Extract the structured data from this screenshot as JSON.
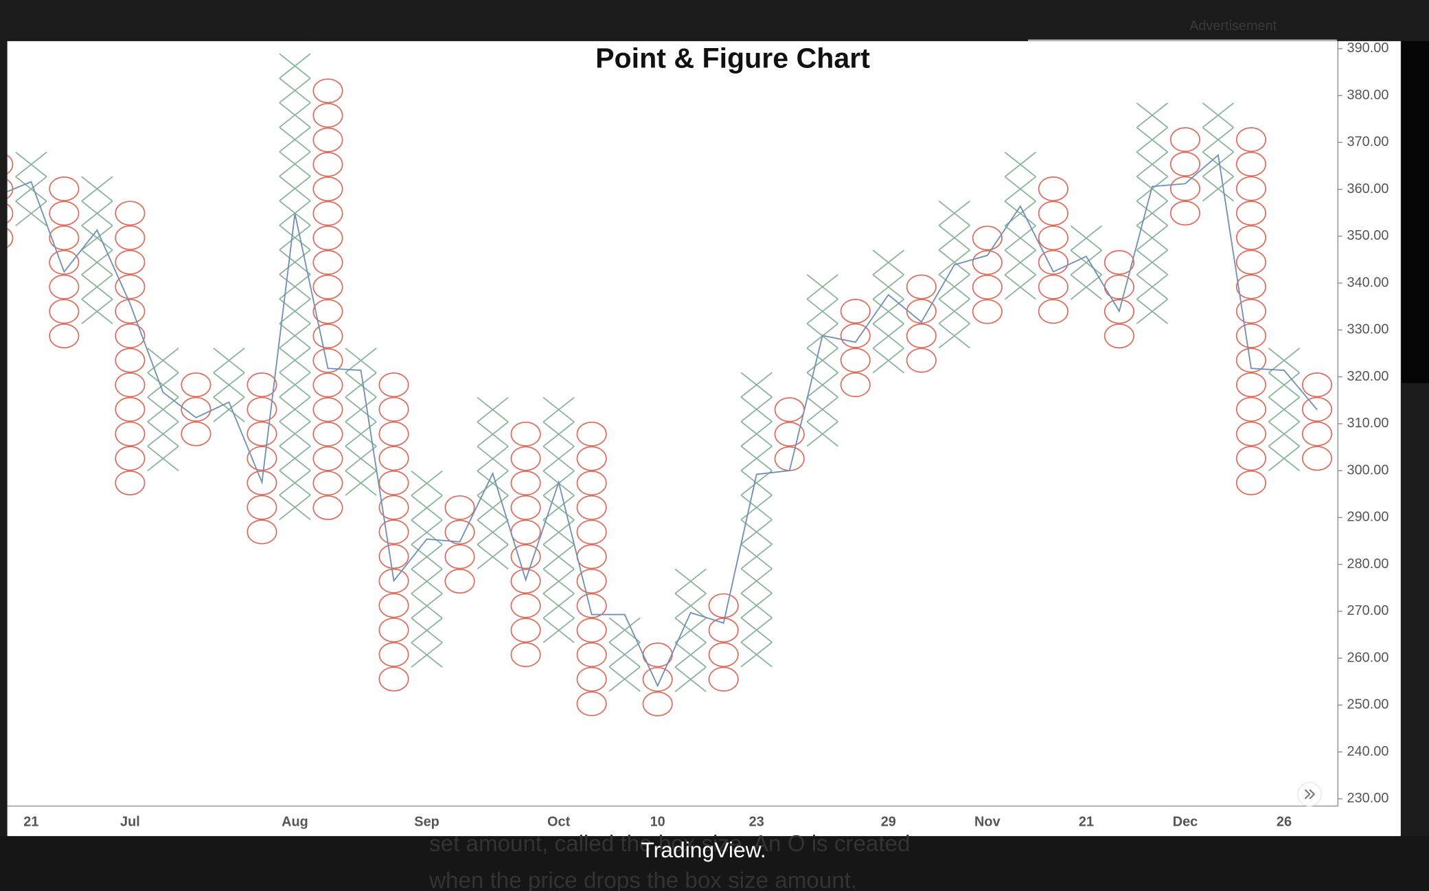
{
  "page": {
    "advertisement": "Advertisement",
    "watermark": "TradingView.",
    "background_text": [
      "set amount, called the box size. An O is created",
      "when the price drops the box size amount."
    ]
  },
  "chart_data": {
    "type": "point_and_figure",
    "title": "Point & Figure Chart",
    "categories": [
      null,
      "21",
      null,
      null,
      "Jul",
      null,
      null,
      null,
      null,
      "Aug",
      null,
      null,
      null,
      "Sep",
      null,
      null,
      null,
      "Oct",
      null,
      null,
      "10",
      null,
      null,
      "23",
      null,
      null,
      null,
      "29",
      null,
      null,
      "Nov",
      null,
      null,
      "21",
      null,
      null,
      "Dec",
      null,
      null,
      "26",
      null
    ],
    "box_size": 5.23,
    "x_color": "#86b295",
    "o_color": "#e06a5a",
    "columns": [
      {
        "type": "O",
        "high": 365.3,
        "low": 349.6
      },
      {
        "type": "X",
        "high": 365.3,
        "low": 354.9
      },
      {
        "type": "O",
        "high": 360.1,
        "low": 328.7
      },
      {
        "type": "X",
        "high": 360.1,
        "low": 334.0
      },
      {
        "type": "O",
        "high": 354.9,
        "low": 297.3
      },
      {
        "type": "X",
        "high": 323.5,
        "low": 302.6
      },
      {
        "type": "O",
        "high": 318.3,
        "low": 307.8
      },
      {
        "type": "X",
        "high": 323.5,
        "low": 313.0
      },
      {
        "type": "O",
        "high": 318.3,
        "low": 286.9
      },
      {
        "type": "X",
        "high": 386.3,
        "low": 292.1
      },
      {
        "type": "O",
        "high": 381.0,
        "low": 292.1
      },
      {
        "type": "X",
        "high": 323.5,
        "low": 297.3
      },
      {
        "type": "O",
        "high": 318.3,
        "low": 255.5
      },
      {
        "type": "X",
        "high": 297.3,
        "low": 260.7
      },
      {
        "type": "O",
        "high": 292.1,
        "low": 276.4
      },
      {
        "type": "X",
        "high": 313.0,
        "low": 281.7
      },
      {
        "type": "O",
        "high": 307.8,
        "low": 260.7
      },
      {
        "type": "X",
        "high": 313.0,
        "low": 266.0
      },
      {
        "type": "O",
        "high": 307.8,
        "low": 250.3
      },
      {
        "type": "X",
        "high": 266.0,
        "low": 255.5
      },
      {
        "type": "O",
        "high": 260.7,
        "low": 250.3
      },
      {
        "type": "X",
        "high": 276.4,
        "low": 255.5
      },
      {
        "type": "O",
        "high": 271.2,
        "low": 255.5
      },
      {
        "type": "X",
        "high": 318.3,
        "low": 260.7
      },
      {
        "type": "O",
        "high": 313.0,
        "low": 302.6
      },
      {
        "type": "X",
        "high": 339.2,
        "low": 307.8
      },
      {
        "type": "O",
        "high": 334.0,
        "low": 318.3
      },
      {
        "type": "X",
        "high": 344.4,
        "low": 323.5
      },
      {
        "type": "O",
        "high": 339.2,
        "low": 323.5
      },
      {
        "type": "X",
        "high": 354.9,
        "low": 328.7
      },
      {
        "type": "O",
        "high": 349.6,
        "low": 334.0
      },
      {
        "type": "X",
        "high": 365.3,
        "low": 339.2
      },
      {
        "type": "O",
        "high": 360.1,
        "low": 334.0
      },
      {
        "type": "X",
        "high": 349.6,
        "low": 339.2
      },
      {
        "type": "O",
        "high": 344.4,
        "low": 328.7
      },
      {
        "type": "X",
        "high": 375.8,
        "low": 334.0
      },
      {
        "type": "O",
        "high": 370.6,
        "low": 354.9
      },
      {
        "type": "X",
        "high": 375.8,
        "low": 360.1
      },
      {
        "type": "O",
        "high": 370.6,
        "low": 297.3
      },
      {
        "type": "X",
        "high": 323.5,
        "low": 302.6
      },
      {
        "type": "O",
        "high": 318.3,
        "low": 302.6
      }
    ],
    "line": {
      "color": "#7090b8",
      "values": [
        358.7,
        361.6,
        342.4,
        351.3,
        335.6,
        316.7,
        311.3,
        314.6,
        297.5,
        354.8,
        321.8,
        321.4,
        276.5,
        285.4,
        284.8,
        299.4,
        276.7,
        297.5,
        269.3,
        269.3,
        254.1,
        269.7,
        267.5,
        299.2,
        300.0,
        328.8,
        327.4,
        337.5,
        331.7,
        343.9,
        345.9,
        356.4,
        342.4,
        345.7,
        334.0,
        360.6,
        361.2,
        367.3,
        321.8,
        321.4,
        313.0
      ]
    },
    "ylim": [
      228.45,
      391.6
    ],
    "yticks": [
      {
        "value": 230,
        "label": "230.00"
      },
      {
        "value": 240,
        "label": "240.00"
      },
      {
        "value": 250,
        "label": "250.00"
      },
      {
        "value": 260,
        "label": "260.00"
      },
      {
        "value": 270,
        "label": "270.00"
      },
      {
        "value": 280,
        "label": "280.00"
      },
      {
        "value": 290,
        "label": "290.00"
      },
      {
        "value": 300,
        "label": "300.00"
      },
      {
        "value": 310,
        "label": "310.00"
      },
      {
        "value": 320,
        "label": "320.00"
      },
      {
        "value": 330,
        "label": "330.00"
      },
      {
        "value": 340,
        "label": "340.00"
      },
      {
        "value": 350,
        "label": "350.00"
      },
      {
        "value": 360,
        "label": "360.00"
      },
      {
        "value": 370,
        "label": "370.00"
      },
      {
        "value": 380,
        "label": "380.00"
      },
      {
        "value": 390,
        "label": "390.00"
      }
    ]
  }
}
